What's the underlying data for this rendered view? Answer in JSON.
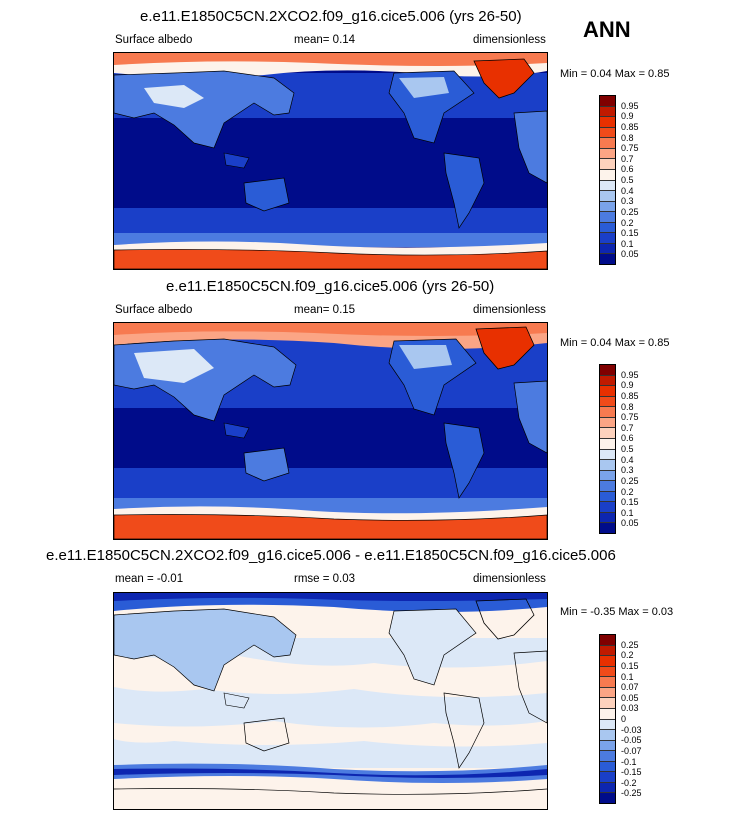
{
  "season": "ANN",
  "panels": [
    {
      "title": "e.e11.E1850C5CN.2XCO2.f09_g16.cice5.006 (yrs 26-50)",
      "left_label": "Surface albedo",
      "center_label": "mean=   0.14",
      "right_label": "dimensionless",
      "minmax": "Min =   0.04 Max =   0.85",
      "levels": [
        "0.95",
        "0.9",
        "0.85",
        "0.8",
        "0.75",
        "0.7",
        "0.6",
        "0.5",
        "0.4",
        "0.3",
        "0.25",
        "0.2",
        "0.15",
        "0.1",
        "0.05"
      ],
      "colors": [
        "#800000",
        "#c01a00",
        "#e83000",
        "#f04b1a",
        "#f77a50",
        "#fba585",
        "#fdd2bd",
        "#fdf3eb",
        "#dce8f7",
        "#a9c7f0",
        "#7aa3ea",
        "#4c7be0",
        "#2a5cd6",
        "#1a3fc8",
        "#0d26b0",
        "#000c8a"
      ]
    },
    {
      "title": "e.e11.E1850C5CN.f09_g16.cice5.006 (yrs 26-50)",
      "left_label": "Surface albedo",
      "center_label": "mean=   0.15",
      "right_label": "dimensionless",
      "minmax": "Min =   0.04 Max =   0.85",
      "levels": [
        "0.95",
        "0.9",
        "0.85",
        "0.8",
        "0.75",
        "0.7",
        "0.6",
        "0.5",
        "0.4",
        "0.3",
        "0.25",
        "0.2",
        "0.15",
        "0.1",
        "0.05"
      ],
      "colors": [
        "#800000",
        "#c01a00",
        "#e83000",
        "#f04b1a",
        "#f77a50",
        "#fba585",
        "#fdd2bd",
        "#fdf3eb",
        "#dce8f7",
        "#a9c7f0",
        "#7aa3ea",
        "#4c7be0",
        "#2a5cd6",
        "#1a3fc8",
        "#0d26b0",
        "#000c8a"
      ]
    },
    {
      "title": "e.e11.E1850C5CN.2XCO2.f09_g16.cice5.006 - e.e11.E1850C5CN.f09_g16.cice5.006",
      "left_label": "mean =  -0.01",
      "center_label": "rmse =   0.03",
      "right_label": "dimensionless",
      "minmax": "Min =  -0.35 Max =   0.03",
      "levels": [
        "0.25",
        "0.2",
        "0.15",
        "0.1",
        "0.07",
        "0.05",
        "0.03",
        "0",
        "-0.03",
        "-0.05",
        "-0.07",
        "-0.1",
        "-0.15",
        "-0.2",
        "-0.25"
      ],
      "colors": [
        "#800000",
        "#c01a00",
        "#e83000",
        "#f04b1a",
        "#f77a50",
        "#fba585",
        "#fdd2bd",
        "#fdf3eb",
        "#dce8f7",
        "#a9c7f0",
        "#7aa3ea",
        "#4c7be0",
        "#2a5cd6",
        "#1a3fc8",
        "#0d26b0",
        "#000c8a"
      ]
    }
  ]
}
